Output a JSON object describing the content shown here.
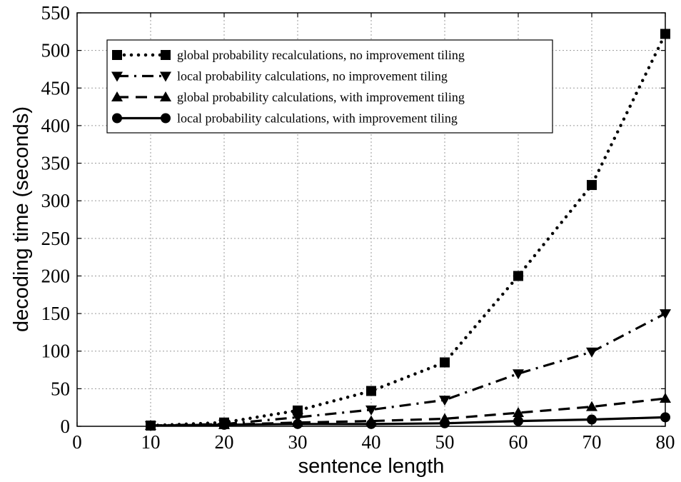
{
  "chart_data": {
    "type": "line",
    "title": "",
    "xlabel": "sentence length",
    "ylabel": "decoding time (seconds)",
    "xlim": [
      0,
      80
    ],
    "ylim": [
      0,
      550
    ],
    "xticks": [
      0,
      10,
      20,
      30,
      40,
      50,
      60,
      70,
      80
    ],
    "yticks": [
      0,
      50,
      100,
      150,
      200,
      250,
      300,
      350,
      400,
      450,
      500,
      550
    ],
    "grid": true,
    "legend_position": "top-left",
    "series": [
      {
        "name": "global probability recalculations, no improvement tiling",
        "marker": "square",
        "line": "dotted",
        "x": [
          10,
          20,
          30,
          40,
          50,
          60,
          70,
          80
        ],
        "y": [
          1,
          5,
          21,
          47,
          85,
          200,
          321,
          522
        ]
      },
      {
        "name": "local probability calculations, no improvement tiling",
        "marker": "triangle-down",
        "line": "dashdot",
        "x": [
          10,
          20,
          30,
          40,
          50,
          60,
          70,
          80
        ],
        "y": [
          1,
          3,
          12,
          22,
          35,
          70,
          99,
          150
        ]
      },
      {
        "name": "global probability calculations, with improvement tiling",
        "marker": "triangle-up",
        "line": "dashed",
        "x": [
          10,
          20,
          30,
          40,
          50,
          60,
          70,
          80
        ],
        "y": [
          1,
          2,
          5,
          7,
          10,
          18,
          26,
          37
        ]
      },
      {
        "name": "local probability calculations, with improvement tiling",
        "marker": "circle",
        "line": "solid",
        "x": [
          10,
          20,
          30,
          40,
          50,
          60,
          70,
          80
        ],
        "y": [
          1,
          2,
          3,
          3,
          4,
          7,
          9,
          12
        ]
      }
    ]
  }
}
